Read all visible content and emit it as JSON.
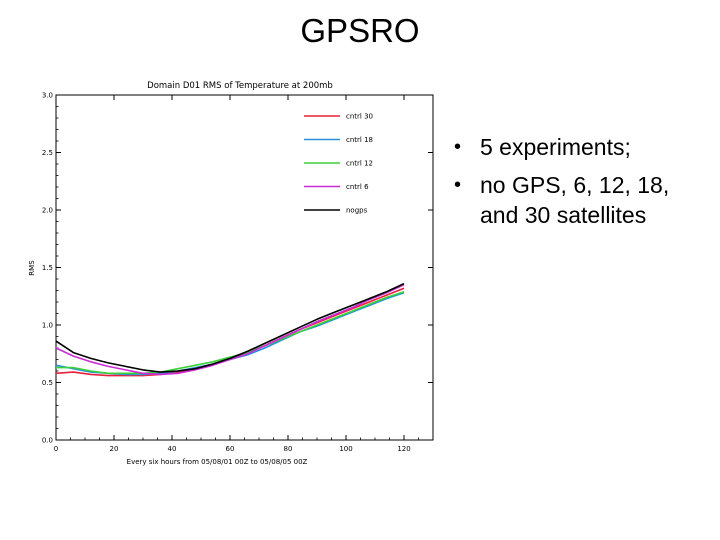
{
  "slide": {
    "title": "GPSRO",
    "bullets": [
      "5 experiments;",
      "no GPS, 6, 12, 18, and 30 satellites"
    ]
  },
  "chart_data": {
    "type": "line",
    "title": "Domain D01   RMS of Temperature at 200mb",
    "xlabel": "Every six hours from 05/08/01 00Z to 05/08/05 00Z",
    "ylabel": "RMS",
    "xlim": [
      0,
      130
    ],
    "ylim": [
      0,
      3.0
    ],
    "xticks": [
      0,
      20,
      40,
      60,
      80,
      100,
      120
    ],
    "yticks": [
      0.0,
      0.5,
      1.0,
      1.5,
      2.0,
      2.5,
      3.0
    ],
    "ytick_labels": [
      "0.0",
      "0.5",
      "1.0",
      "1.5",
      "2.0",
      "2.5",
      "3.0"
    ],
    "legend_position": "top-right",
    "x": [
      0,
      6,
      12,
      18,
      24,
      30,
      36,
      42,
      48,
      54,
      60,
      66,
      72,
      78,
      84,
      90,
      96,
      102,
      108,
      114,
      120
    ],
    "series": [
      {
        "name": "cntrl 30",
        "color": "#e8203a",
        "values": [
          0.58,
          0.59,
          0.57,
          0.56,
          0.56,
          0.56,
          0.57,
          0.59,
          0.62,
          0.66,
          0.71,
          0.76,
          0.82,
          0.89,
          0.96,
          1.02,
          1.08,
          1.14,
          1.2,
          1.26,
          1.32
        ]
      },
      {
        "name": "cntrl 18",
        "color": "#2a8fd8",
        "values": [
          0.65,
          0.62,
          0.59,
          0.58,
          0.57,
          0.57,
          0.58,
          0.6,
          0.63,
          0.66,
          0.7,
          0.74,
          0.8,
          0.87,
          0.94,
          0.99,
          1.05,
          1.11,
          1.17,
          1.23,
          1.28
        ]
      },
      {
        "name": "cntrl 12",
        "color": "#3ad23a",
        "values": [
          0.63,
          0.63,
          0.6,
          0.58,
          0.58,
          0.58,
          0.59,
          0.62,
          0.65,
          0.68,
          0.72,
          0.76,
          0.82,
          0.88,
          0.94,
          1.0,
          1.06,
          1.12,
          1.18,
          1.24,
          1.29
        ]
      },
      {
        "name": "cntrl 6",
        "color": "#cc2ad6",
        "values": [
          0.8,
          0.73,
          0.68,
          0.64,
          0.61,
          0.58,
          0.57,
          0.58,
          0.61,
          0.65,
          0.7,
          0.75,
          0.82,
          0.89,
          0.96,
          1.03,
          1.09,
          1.15,
          1.22,
          1.28,
          1.35
        ]
      },
      {
        "name": "nogps",
        "color": "#000000",
        "values": [
          0.86,
          0.76,
          0.71,
          0.67,
          0.64,
          0.61,
          0.59,
          0.6,
          0.62,
          0.66,
          0.71,
          0.77,
          0.84,
          0.91,
          0.98,
          1.05,
          1.11,
          1.17,
          1.23,
          1.29,
          1.36
        ]
      }
    ]
  }
}
